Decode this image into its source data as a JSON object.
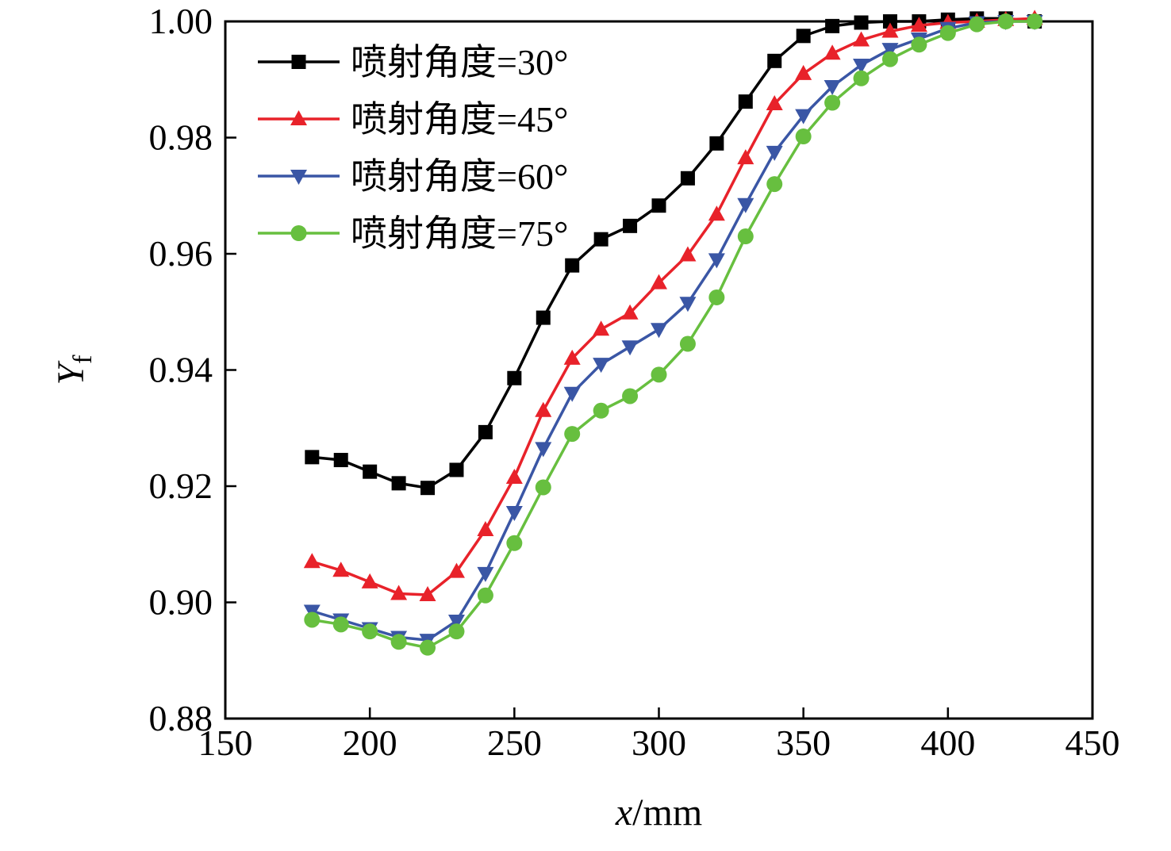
{
  "chart_data": {
    "type": "line",
    "title": "",
    "xlabel": {
      "italic": "x",
      "rest": "/mm"
    },
    "ylabel": {
      "italic": "Y",
      "sub": "f"
    },
    "xlim": [
      150,
      450
    ],
    "ylim": [
      0.88,
      1.0
    ],
    "x_ticks": [
      150,
      200,
      250,
      300,
      350,
      400,
      450
    ],
    "y_ticks": [
      0.88,
      0.9,
      0.92,
      0.94,
      0.96,
      0.98,
      1.0
    ],
    "grid": false,
    "legend_position": "top-left",
    "x": [
      180,
      190,
      200,
      210,
      220,
      230,
      240,
      250,
      260,
      270,
      280,
      290,
      300,
      310,
      320,
      330,
      340,
      350,
      360,
      370,
      380,
      390,
      400,
      410,
      420,
      430
    ],
    "series": [
      {
        "name": "喷射角度=30°",
        "color": "#000000",
        "marker": "square",
        "values": [
          0.925,
          0.9245,
          0.9225,
          0.9205,
          0.9197,
          0.9228,
          0.9293,
          0.9386,
          0.949,
          0.958,
          0.9625,
          0.9648,
          0.9683,
          0.973,
          0.979,
          0.9862,
          0.9932,
          0.9975,
          0.9992,
          0.9998,
          1.0,
          1.0,
          1.0003,
          1.0005,
          1.0005,
          1.0
        ]
      },
      {
        "name": "喷射角度=45°",
        "color": "#e8222a",
        "marker": "triangle-up",
        "values": [
          0.907,
          0.9055,
          0.9035,
          0.9015,
          0.9013,
          0.9053,
          0.9125,
          0.9215,
          0.933,
          0.942,
          0.947,
          0.9498,
          0.955,
          0.9598,
          0.9668,
          0.9765,
          0.9858,
          0.991,
          0.9945,
          0.9968,
          0.9983,
          0.9993,
          0.9998,
          1.0,
          1.0003,
          1.0005
        ]
      },
      {
        "name": "喷射角度=60°",
        "color": "#3a56a5",
        "marker": "triangle-down",
        "values": [
          0.8985,
          0.897,
          0.8955,
          0.894,
          0.8935,
          0.8968,
          0.905,
          0.9155,
          0.9265,
          0.936,
          0.941,
          0.944,
          0.947,
          0.9515,
          0.959,
          0.9685,
          0.9775,
          0.9838,
          0.9888,
          0.9925,
          0.9952,
          0.997,
          0.9988,
          0.9998,
          1.0,
          1.0
        ]
      },
      {
        "name": "喷射角度=75°",
        "color": "#67bf3f",
        "marker": "circle",
        "values": [
          0.897,
          0.8962,
          0.895,
          0.8932,
          0.8922,
          0.895,
          0.9012,
          0.9102,
          0.9198,
          0.929,
          0.933,
          0.9355,
          0.9392,
          0.9445,
          0.9525,
          0.963,
          0.972,
          0.9802,
          0.986,
          0.9902,
          0.9935,
          0.996,
          0.998,
          0.9995,
          1.0,
          1.0
        ]
      }
    ]
  }
}
